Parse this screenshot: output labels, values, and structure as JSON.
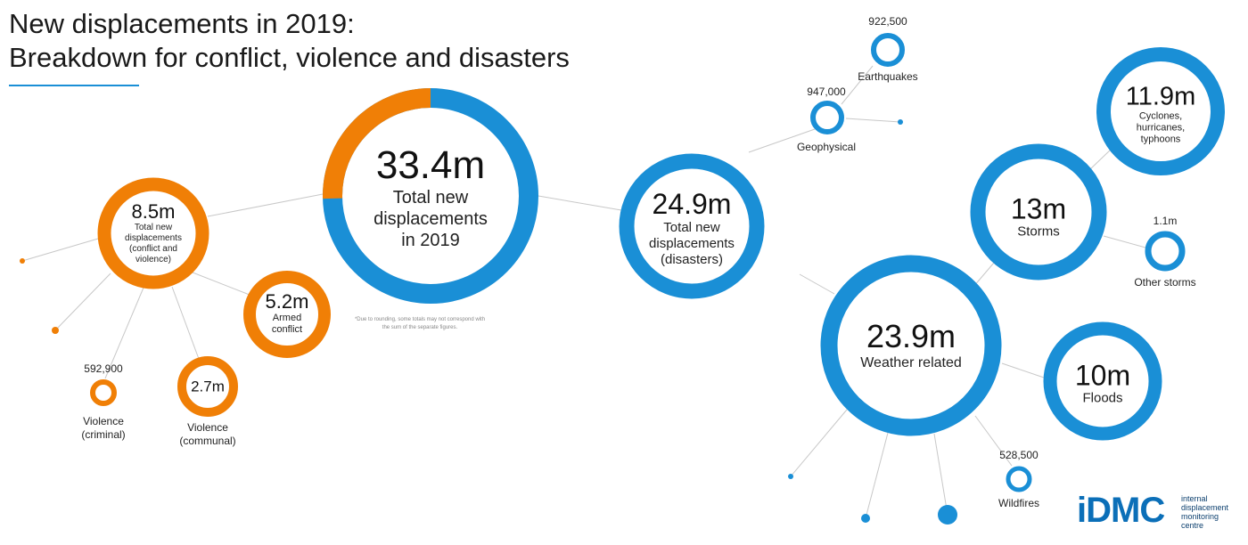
{
  "title": {
    "line1": "New displacements in 2019:",
    "line2": "Breakdown for conflict, violence and disasters"
  },
  "colors": {
    "conflict": "#f07f06",
    "disasters": "#1a8fd6",
    "connector": "#c8c8c8",
    "logo": "#0b6fb8"
  },
  "total": {
    "value": "33.4m",
    "label_lines": [
      "Total new",
      "displacements",
      "in 2019"
    ],
    "conflict_share": 0.2545,
    "note": "*Due to rounding, some totals may not correspond with the sum of the separate figures."
  },
  "conflict": {
    "value": "8.5m",
    "label_lines": [
      "Total new",
      "displacements",
      "(conflict and",
      "violence)"
    ],
    "armed": {
      "value": "5.2m",
      "label_lines": [
        "Armed",
        "conflict"
      ]
    },
    "communal": {
      "value": "2.7m",
      "label_lines": [
        "Violence",
        "(communal)"
      ]
    },
    "criminal": {
      "value": "592,900",
      "label_lines": [
        "Violence",
        "(criminal)"
      ]
    }
  },
  "disasters": {
    "value": "24.9m",
    "label_lines": [
      "Total new",
      "displacements",
      "(disasters)"
    ],
    "geophysical": {
      "value": "947,000",
      "label": "Geophysical"
    },
    "earthquakes": {
      "value": "922,500",
      "label": "Earthquakes"
    },
    "weather": {
      "value": "23.9m",
      "label": "Weather related"
    },
    "storms": {
      "value": "13m",
      "label": "Storms"
    },
    "cyclones": {
      "value": "11.9m",
      "label_lines": [
        "Cyclones,",
        "hurricanes,",
        "typhoons"
      ]
    },
    "other_storms": {
      "value": "1.1m",
      "label": "Other storms"
    },
    "floods": {
      "value": "10m",
      "label": "Floods"
    },
    "wildfires": {
      "value": "528,500",
      "label": "Wildfires"
    }
  },
  "logo": {
    "mark": "iDMC",
    "tagline": [
      "internal",
      "displacement",
      "monitoring",
      "centre"
    ]
  }
}
